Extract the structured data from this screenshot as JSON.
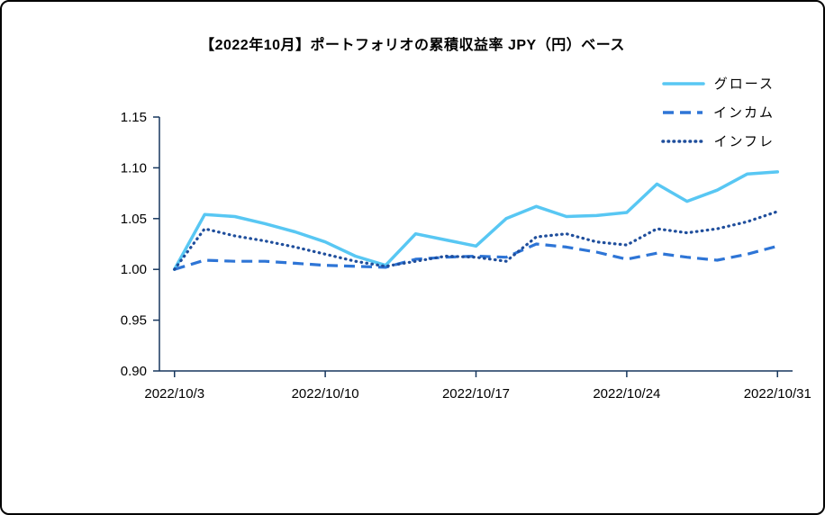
{
  "title": "【2022年10月】ポートフォリオの累積収益率 JPY（円）ベース",
  "chart_data": {
    "type": "line",
    "x": [
      "2022/10/3",
      "2022/10/4",
      "2022/10/5",
      "2022/10/6",
      "2022/10/7",
      "2022/10/10",
      "2022/10/11",
      "2022/10/12",
      "2022/10/13",
      "2022/10/14",
      "2022/10/17",
      "2022/10/18",
      "2022/10/19",
      "2022/10/20",
      "2022/10/21",
      "2022/10/24",
      "2022/10/25",
      "2022/10/26",
      "2022/10/27",
      "2022/10/28",
      "2022/10/31"
    ],
    "x_tick_labels": [
      "2022/10/3",
      "2022/10/10",
      "2022/10/17",
      "2022/10/24",
      "2022/10/31"
    ],
    "x_tick_indices": [
      0,
      5,
      10,
      15,
      20
    ],
    "y_tick_labels": [
      "0.90",
      "0.95",
      "1.00",
      "1.05",
      "1.10",
      "1.15"
    ],
    "ylim": [
      0.9,
      1.15
    ],
    "grid": false,
    "legend_position": "top-right",
    "axis_color": "#17375e",
    "series": [
      {
        "name": "グロース",
        "color": "#58c7f3",
        "style": "solid",
        "values": [
          1.0,
          1.054,
          1.052,
          1.045,
          1.037,
          1.027,
          1.013,
          1.004,
          1.035,
          1.029,
          1.023,
          1.05,
          1.062,
          1.052,
          1.053,
          1.056,
          1.084,
          1.067,
          1.078,
          1.094,
          1.096
        ]
      },
      {
        "name": "インカム",
        "color": "#2e75d6",
        "style": "dashed",
        "values": [
          1.0,
          1.009,
          1.008,
          1.008,
          1.006,
          1.004,
          1.003,
          1.002,
          1.01,
          1.012,
          1.013,
          1.012,
          1.025,
          1.022,
          1.017,
          1.01,
          1.016,
          1.012,
          1.009,
          1.015,
          1.023
        ]
      },
      {
        "name": "インフレ",
        "color": "#1f4e9c",
        "style": "dotted",
        "values": [
          1.0,
          1.04,
          1.033,
          1.028,
          1.022,
          1.015,
          1.008,
          1.003,
          1.008,
          1.013,
          1.012,
          1.008,
          1.032,
          1.035,
          1.027,
          1.024,
          1.04,
          1.036,
          1.04,
          1.047,
          1.057
        ]
      }
    ]
  }
}
